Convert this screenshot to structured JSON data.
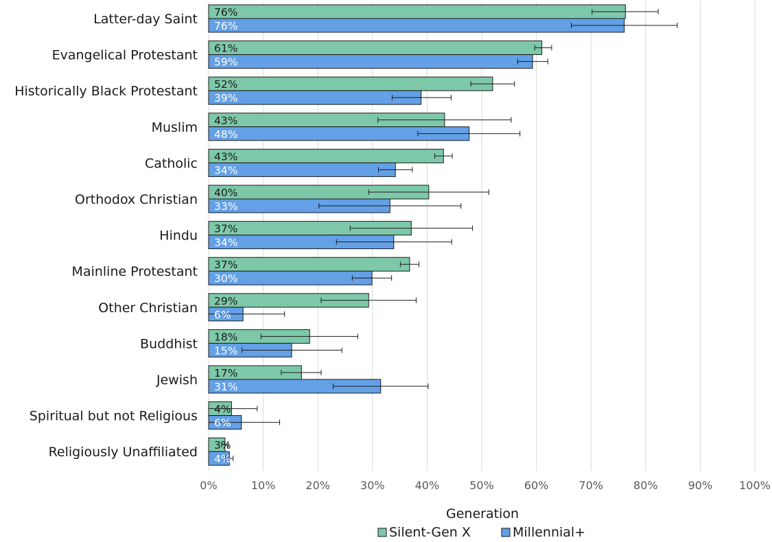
{
  "chart_data": {
    "type": "bar",
    "orientation": "horizontal",
    "categories": [
      "Latter-day Saint",
      "Evangelical Protestant",
      "Historically Black Protestant",
      "Muslim",
      "Catholic",
      "Orthodox Christian",
      "Hindu",
      "Mainline Protestant",
      "Other Christian",
      "Buddhist",
      "Jewish",
      "Spiritual but not Religious",
      "Religiously Unaffiliated"
    ],
    "series": [
      {
        "name": "Silent-Gen X",
        "color": "#7ec8aa",
        "values": [
          76.3,
          61.0,
          52.0,
          43.2,
          43.0,
          40.3,
          37.1,
          36.8,
          29.3,
          18.5,
          17.0,
          4.2,
          3.0
        ],
        "labels": [
          "76%",
          "61%",
          "52%",
          "43%",
          "43%",
          "40%",
          "37%",
          "37%",
          "29%",
          "18%",
          "17%",
          "4%",
          "3%"
        ],
        "error_low": [
          70.2,
          59.7,
          48.0,
          31.0,
          41.4,
          29.3,
          25.9,
          35.1,
          20.6,
          9.6,
          13.3,
          0.0,
          2.4
        ],
        "error_high": [
          82.3,
          62.8,
          56.0,
          55.4,
          44.6,
          51.3,
          48.3,
          38.5,
          38.0,
          27.3,
          20.6,
          8.9,
          3.6
        ]
      },
      {
        "name": "Millennial+",
        "color": "#63a0e6",
        "values": [
          76.1,
          59.3,
          38.9,
          47.7,
          34.2,
          33.2,
          33.9,
          29.9,
          6.3,
          15.2,
          31.5,
          6.0,
          3.8
        ],
        "labels": [
          "76%",
          "59%",
          "39%",
          "48%",
          "34%",
          "33%",
          "34%",
          "30%",
          "6%",
          "15%",
          "31%",
          "6%",
          "4%"
        ],
        "error_low": [
          66.4,
          56.6,
          33.6,
          38.3,
          31.1,
          20.2,
          23.4,
          26.3,
          0.0,
          6.1,
          22.8,
          0.0,
          3.1
        ],
        "error_high": [
          85.8,
          62.1,
          44.4,
          57.0,
          37.3,
          46.2,
          44.5,
          33.5,
          13.9,
          24.4,
          40.2,
          13.0,
          4.5
        ]
      }
    ],
    "xlim": [
      0,
      100
    ],
    "xticks": [
      "0%",
      "10%",
      "20%",
      "30%",
      "40%",
      "50%",
      "60%",
      "70%",
      "80%",
      "90%",
      "100%"
    ],
    "xlabel": "",
    "ylabel": "",
    "legend_title": "Generation",
    "legend_position": "bottom",
    "grid": "vertical",
    "title": ""
  }
}
